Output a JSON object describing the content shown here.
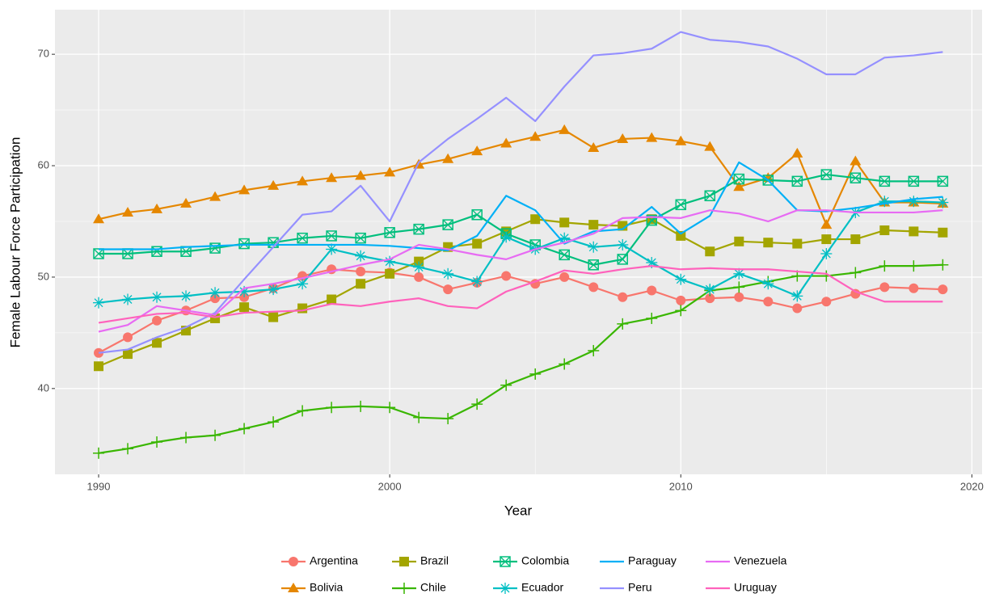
{
  "chart_data": {
    "type": "line",
    "x_label": "Year",
    "y_label": "Female Labour Force Participation",
    "x": [
      1990,
      1991,
      1992,
      1993,
      1994,
      1995,
      1996,
      1997,
      1998,
      1999,
      2000,
      2001,
      2002,
      2003,
      2004,
      2005,
      2006,
      2007,
      2008,
      2009,
      2010,
      2011,
      2012,
      2013,
      2014,
      2015,
      2016,
      2017,
      2018,
      2019
    ],
    "xlim": [
      1988.5,
      2020.35
    ],
    "xticks": [
      1990,
      2000,
      2010,
      2020
    ],
    "ylim": [
      32.3,
      74
    ],
    "yticks": [
      40,
      50,
      60,
      70
    ],
    "grid": true,
    "legend_position": "bottom",
    "series": [
      {
        "name": "Argentina",
        "color": "#F8766D",
        "marker": "circle",
        "values": [
          43.2,
          44.6,
          46.1,
          47.0,
          48.1,
          48.2,
          49.0,
          50.1,
          50.7,
          50.5,
          50.4,
          50.0,
          48.9,
          49.5,
          50.1,
          49.4,
          50.0,
          49.1,
          48.2,
          48.8,
          47.9,
          48.1,
          48.2,
          47.8,
          47.2,
          47.8,
          48.5,
          49.1,
          49.0,
          48.9
        ]
      },
      {
        "name": "Bolivia",
        "color": "#E58700",
        "marker": "triangle",
        "values": [
          55.2,
          55.8,
          56.1,
          56.6,
          57.2,
          57.8,
          58.2,
          58.6,
          58.9,
          59.1,
          59.4,
          60.1,
          60.6,
          61.3,
          62.0,
          62.6,
          63.2,
          61.6,
          62.4,
          62.5,
          62.2,
          61.7,
          58.1,
          58.9,
          61.1,
          54.7,
          60.4,
          56.7,
          56.7,
          56.6
        ]
      },
      {
        "name": "Brazil",
        "color": "#A3A500",
        "marker": "square",
        "values": [
          42.0,
          43.1,
          44.1,
          45.2,
          46.3,
          47.3,
          46.4,
          47.2,
          48.0,
          49.4,
          50.3,
          51.4,
          52.7,
          53.0,
          54.1,
          55.2,
          54.9,
          54.7,
          54.6,
          55.2,
          53.7,
          52.3,
          53.2,
          53.1,
          53.0,
          53.4,
          53.4,
          54.2,
          54.1,
          54.0
        ]
      },
      {
        "name": "Chile",
        "color": "#39B600",
        "marker": "plus",
        "values": [
          34.2,
          34.6,
          35.2,
          35.6,
          35.8,
          36.4,
          37.0,
          38.0,
          38.3,
          38.4,
          38.3,
          37.4,
          37.3,
          38.6,
          40.3,
          41.3,
          42.2,
          43.4,
          45.8,
          46.3,
          47.0,
          48.8,
          49.1,
          49.6,
          50.1,
          50.1,
          50.4,
          51.0,
          51.0,
          51.1
        ]
      },
      {
        "name": "Colombia",
        "color": "#00BF7D",
        "marker": "square-cross",
        "values": [
          52.1,
          52.1,
          52.3,
          52.3,
          52.6,
          53.0,
          53.1,
          53.5,
          53.7,
          53.5,
          54.0,
          54.3,
          54.7,
          55.6,
          53.9,
          52.9,
          52.0,
          51.1,
          51.6,
          55.1,
          56.5,
          57.3,
          58.8,
          58.7,
          58.6,
          59.2,
          58.9,
          58.6,
          58.6,
          58.6
        ]
      },
      {
        "name": "Ecuador",
        "color": "#00BFC4",
        "marker": "asterisk",
        "values": [
          47.7,
          48.0,
          48.2,
          48.3,
          48.6,
          48.7,
          48.9,
          49.4,
          52.5,
          51.9,
          51.4,
          50.9,
          50.3,
          49.6,
          53.6,
          52.5,
          53.5,
          52.7,
          52.9,
          51.3,
          49.8,
          48.9,
          50.3,
          49.4,
          48.3,
          52.1,
          55.8,
          56.8,
          56.8,
          56.7
        ]
      },
      {
        "name": "Paraguay",
        "color": "#00B0F6",
        "values": [
          52.5,
          52.5,
          52.5,
          52.7,
          52.8,
          52.9,
          52.9,
          52.9,
          52.9,
          52.9,
          52.8,
          52.6,
          52.4,
          53.7,
          57.3,
          56.0,
          53.0,
          54.1,
          54.3,
          56.3,
          53.9,
          55.5,
          60.3,
          58.7,
          56.0,
          55.9,
          56.2,
          56.6,
          57.0,
          57.2
        ]
      },
      {
        "name": "Peru",
        "color": "#9590FF",
        "values": [
          43.2,
          43.5,
          44.6,
          45.5,
          46.8,
          49.8,
          52.7,
          55.6,
          55.9,
          58.2,
          55.0,
          60.3,
          62.4,
          64.2,
          66.1,
          64.0,
          67.1,
          69.9,
          70.1,
          70.5,
          72.0,
          71.3,
          71.1,
          70.7,
          69.6,
          68.2,
          68.2,
          69.7,
          69.9,
          70.2
        ]
      },
      {
        "name": "Venezuela",
        "color": "#E76BF3",
        "values": [
          45.1,
          45.7,
          47.4,
          47.0,
          46.6,
          49.0,
          49.4,
          49.9,
          50.5,
          51.1,
          51.6,
          52.9,
          52.5,
          52.0,
          51.6,
          52.5,
          53.1,
          53.9,
          55.3,
          55.4,
          55.3,
          56.0,
          55.7,
          55.0,
          56.0,
          56.0,
          55.8,
          55.8,
          55.8,
          56.0
        ]
      },
      {
        "name": "Uruguay",
        "color": "#FF62BC",
        "values": [
          45.9,
          46.3,
          46.7,
          46.8,
          46.4,
          46.8,
          46.9,
          47.0,
          47.6,
          47.4,
          47.8,
          48.1,
          47.4,
          47.2,
          48.7,
          49.6,
          50.6,
          50.3,
          50.7,
          51.0,
          50.7,
          50.8,
          50.7,
          50.7,
          50.5,
          50.3,
          48.7,
          47.8,
          47.8,
          47.8
        ]
      }
    ]
  }
}
